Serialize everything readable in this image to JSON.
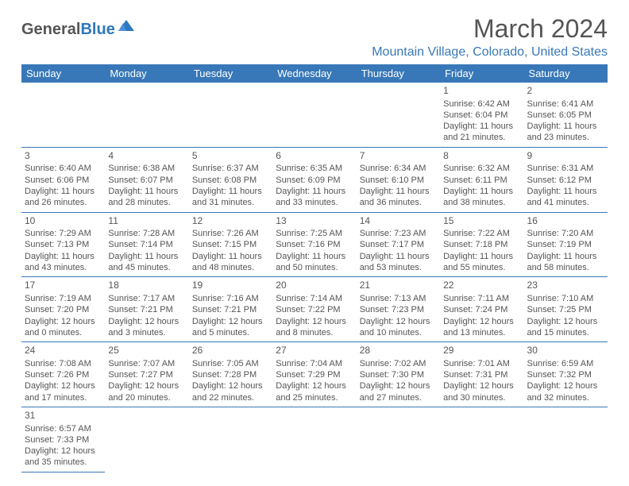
{
  "logo": {
    "part1": "General",
    "part2": "Blue"
  },
  "title": "March 2024",
  "location": "Mountain Village, Colorado, United States",
  "colors": {
    "header_bg": "#3878b8",
    "header_fg": "#ffffff",
    "text": "#555555",
    "accent": "#3878b8"
  },
  "weekdays": [
    "Sunday",
    "Monday",
    "Tuesday",
    "Wednesday",
    "Thursday",
    "Friday",
    "Saturday"
  ],
  "weeks": [
    [
      null,
      null,
      null,
      null,
      null,
      {
        "n": "1",
        "sr": "6:42 AM",
        "ss": "6:04 PM",
        "dl": "11 hours and 21 minutes."
      },
      {
        "n": "2",
        "sr": "6:41 AM",
        "ss": "6:05 PM",
        "dl": "11 hours and 23 minutes."
      }
    ],
    [
      {
        "n": "3",
        "sr": "6:40 AM",
        "ss": "6:06 PM",
        "dl": "11 hours and 26 minutes."
      },
      {
        "n": "4",
        "sr": "6:38 AM",
        "ss": "6:07 PM",
        "dl": "11 hours and 28 minutes."
      },
      {
        "n": "5",
        "sr": "6:37 AM",
        "ss": "6:08 PM",
        "dl": "11 hours and 31 minutes."
      },
      {
        "n": "6",
        "sr": "6:35 AM",
        "ss": "6:09 PM",
        "dl": "11 hours and 33 minutes."
      },
      {
        "n": "7",
        "sr": "6:34 AM",
        "ss": "6:10 PM",
        "dl": "11 hours and 36 minutes."
      },
      {
        "n": "8",
        "sr": "6:32 AM",
        "ss": "6:11 PM",
        "dl": "11 hours and 38 minutes."
      },
      {
        "n": "9",
        "sr": "6:31 AM",
        "ss": "6:12 PM",
        "dl": "11 hours and 41 minutes."
      }
    ],
    [
      {
        "n": "10",
        "sr": "7:29 AM",
        "ss": "7:13 PM",
        "dl": "11 hours and 43 minutes."
      },
      {
        "n": "11",
        "sr": "7:28 AM",
        "ss": "7:14 PM",
        "dl": "11 hours and 45 minutes."
      },
      {
        "n": "12",
        "sr": "7:26 AM",
        "ss": "7:15 PM",
        "dl": "11 hours and 48 minutes."
      },
      {
        "n": "13",
        "sr": "7:25 AM",
        "ss": "7:16 PM",
        "dl": "11 hours and 50 minutes."
      },
      {
        "n": "14",
        "sr": "7:23 AM",
        "ss": "7:17 PM",
        "dl": "11 hours and 53 minutes."
      },
      {
        "n": "15",
        "sr": "7:22 AM",
        "ss": "7:18 PM",
        "dl": "11 hours and 55 minutes."
      },
      {
        "n": "16",
        "sr": "7:20 AM",
        "ss": "7:19 PM",
        "dl": "11 hours and 58 minutes."
      }
    ],
    [
      {
        "n": "17",
        "sr": "7:19 AM",
        "ss": "7:20 PM",
        "dl": "12 hours and 0 minutes."
      },
      {
        "n": "18",
        "sr": "7:17 AM",
        "ss": "7:21 PM",
        "dl": "12 hours and 3 minutes."
      },
      {
        "n": "19",
        "sr": "7:16 AM",
        "ss": "7:21 PM",
        "dl": "12 hours and 5 minutes."
      },
      {
        "n": "20",
        "sr": "7:14 AM",
        "ss": "7:22 PM",
        "dl": "12 hours and 8 minutes."
      },
      {
        "n": "21",
        "sr": "7:13 AM",
        "ss": "7:23 PM",
        "dl": "12 hours and 10 minutes."
      },
      {
        "n": "22",
        "sr": "7:11 AM",
        "ss": "7:24 PM",
        "dl": "12 hours and 13 minutes."
      },
      {
        "n": "23",
        "sr": "7:10 AM",
        "ss": "7:25 PM",
        "dl": "12 hours and 15 minutes."
      }
    ],
    [
      {
        "n": "24",
        "sr": "7:08 AM",
        "ss": "7:26 PM",
        "dl": "12 hours and 17 minutes."
      },
      {
        "n": "25",
        "sr": "7:07 AM",
        "ss": "7:27 PM",
        "dl": "12 hours and 20 minutes."
      },
      {
        "n": "26",
        "sr": "7:05 AM",
        "ss": "7:28 PM",
        "dl": "12 hours and 22 minutes."
      },
      {
        "n": "27",
        "sr": "7:04 AM",
        "ss": "7:29 PM",
        "dl": "12 hours and 25 minutes."
      },
      {
        "n": "28",
        "sr": "7:02 AM",
        "ss": "7:30 PM",
        "dl": "12 hours and 27 minutes."
      },
      {
        "n": "29",
        "sr": "7:01 AM",
        "ss": "7:31 PM",
        "dl": "12 hours and 30 minutes."
      },
      {
        "n": "30",
        "sr": "6:59 AM",
        "ss": "7:32 PM",
        "dl": "12 hours and 32 minutes."
      }
    ],
    [
      {
        "n": "31",
        "sr": "6:57 AM",
        "ss": "7:33 PM",
        "dl": "12 hours and 35 minutes."
      },
      null,
      null,
      null,
      null,
      null,
      null
    ]
  ],
  "labels": {
    "sunrise": "Sunrise: ",
    "sunset": "Sunset: ",
    "daylight": "Daylight: "
  }
}
